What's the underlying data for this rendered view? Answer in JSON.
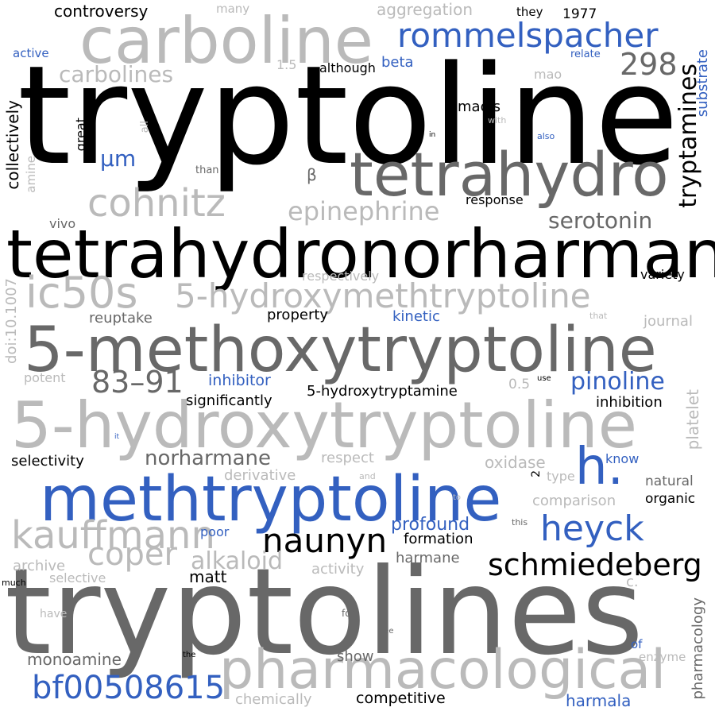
{
  "colors": {
    "background": "#ffffff",
    "black": "#000000",
    "dark_gray": "#686868",
    "light_gray": "#bababa",
    "blue": "#3360c0"
  },
  "words": [
    {
      "text": "tryptoline",
      "color": "black"
    },
    {
      "text": "tryptolines",
      "color": "dark_gray"
    },
    {
      "text": "tetrahydronorharmane",
      "color": "black"
    },
    {
      "text": "5-methoxytryptoline",
      "color": "dark_gray"
    },
    {
      "text": "5-hydroxytryptoline",
      "color": "light_gray"
    },
    {
      "text": "methtryptoline",
      "color": "blue"
    },
    {
      "text": "carboline",
      "color": "light_gray"
    },
    {
      "text": "tetrahydro",
      "color": "dark_gray"
    },
    {
      "text": "pharmacological",
      "color": "light_gray"
    },
    {
      "text": "5-hydroxymethtryptoline",
      "color": "light_gray"
    },
    {
      "text": "ic50s",
      "color": "light_gray"
    },
    {
      "text": "rommelspacher",
      "color": "blue"
    },
    {
      "text": "kauffmann",
      "color": "light_gray"
    },
    {
      "text": "cohnitz",
      "color": "light_gray"
    },
    {
      "text": "heyck",
      "color": "blue"
    },
    {
      "text": "h.",
      "color": "blue"
    },
    {
      "text": "schmiedeberg",
      "color": "black"
    },
    {
      "text": "naunyn",
      "color": "black"
    },
    {
      "text": "bf00508615",
      "color": "blue"
    },
    {
      "text": "coper",
      "color": "light_gray"
    },
    {
      "text": "83–91",
      "color": "dark_gray"
    },
    {
      "text": "298",
      "color": "dark_gray"
    },
    {
      "text": "epinephrine",
      "color": "light_gray"
    },
    {
      "text": "carbolines",
      "color": "light_gray"
    },
    {
      "text": "pinoline",
      "color": "blue"
    },
    {
      "text": "tryptamines",
      "color": "black"
    },
    {
      "text": "serotonin",
      "color": "dark_gray"
    },
    {
      "text": "norharmane",
      "color": "dark_gray"
    },
    {
      "text": "alkaloid",
      "color": "light_gray"
    },
    {
      "text": "μm",
      "color": "blue"
    },
    {
      "text": "profound",
      "color": "blue"
    },
    {
      "text": "controversy",
      "color": "black"
    },
    {
      "text": "aggregation",
      "color": "light_gray"
    },
    {
      "text": "collectively",
      "color": "black"
    },
    {
      "text": "5-hydroxytryptamine",
      "color": "black"
    },
    {
      "text": "monoamine",
      "color": "dark_gray"
    },
    {
      "text": "harmala",
      "color": "blue"
    },
    {
      "text": "competitive",
      "color": "black"
    },
    {
      "text": "inhibitor",
      "color": "blue"
    },
    {
      "text": "inhibition",
      "color": "black"
    },
    {
      "text": "significantly",
      "color": "black"
    },
    {
      "text": "selectivity",
      "color": "black"
    },
    {
      "text": "reuptake",
      "color": "dark_gray"
    },
    {
      "text": "property",
      "color": "black"
    },
    {
      "text": "kinetic",
      "color": "blue"
    },
    {
      "text": "respectively",
      "color": "light_gray"
    },
    {
      "text": "variety",
      "color": "black"
    },
    {
      "text": "journal",
      "color": "light_gray"
    },
    {
      "text": "formation",
      "color": "black"
    },
    {
      "text": "harmane",
      "color": "dark_gray"
    },
    {
      "text": "matt",
      "color": "black"
    },
    {
      "text": "archive",
      "color": "light_gray"
    },
    {
      "text": "selective",
      "color": "light_gray"
    },
    {
      "text": "activity",
      "color": "light_gray"
    },
    {
      "text": "show",
      "color": "dark_gray"
    },
    {
      "text": "chemically",
      "color": "light_gray"
    },
    {
      "text": "respect",
      "color": "light_gray"
    },
    {
      "text": "derivative",
      "color": "light_gray"
    },
    {
      "text": "oxidase",
      "color": "light_gray"
    },
    {
      "text": "comparison",
      "color": "light_gray"
    },
    {
      "text": "natural",
      "color": "dark_gray"
    },
    {
      "text": "organic",
      "color": "black"
    },
    {
      "text": "poor",
      "color": "blue"
    },
    {
      "text": "know",
      "color": "blue"
    },
    {
      "text": "type",
      "color": "light_gray"
    },
    {
      "text": "maois",
      "color": "black"
    },
    {
      "text": "beta",
      "color": "blue"
    },
    {
      "text": "although",
      "color": "black"
    },
    {
      "text": "mao",
      "color": "light_gray"
    },
    {
      "text": "response",
      "color": "black"
    },
    {
      "text": "vivo",
      "color": "dark_gray"
    },
    {
      "text": "potent",
      "color": "light_gray"
    },
    {
      "text": "great",
      "color": "black"
    },
    {
      "text": "active",
      "color": "blue"
    },
    {
      "text": "many",
      "color": "light_gray"
    },
    {
      "text": "they",
      "color": "black"
    },
    {
      "text": "1977",
      "color": "black"
    },
    {
      "text": "relate",
      "color": "blue"
    },
    {
      "text": "1.5",
      "color": "light_gray"
    },
    {
      "text": "than",
      "color": "dark_gray"
    },
    {
      "text": "β",
      "color": "dark_gray"
    },
    {
      "text": "0.5",
      "color": "light_gray"
    },
    {
      "text": "use",
      "color": "black"
    },
    {
      "text": "c.",
      "color": "light_gray"
    },
    {
      "text": "enzyme",
      "color": "light_gray"
    },
    {
      "text": "of",
      "color": "blue"
    },
    {
      "text": "have",
      "color": "light_gray"
    },
    {
      "text": "for",
      "color": "dark_gray"
    },
    {
      "text": "see",
      "color": "dark_gray"
    },
    {
      "text": "the",
      "color": "black"
    },
    {
      "text": "much",
      "color": "black"
    },
    {
      "text": "and",
      "color": "light_gray"
    },
    {
      "text": "to",
      "color": "light_gray"
    },
    {
      "text": "this",
      "color": "dark_gray"
    },
    {
      "text": "2",
      "color": "black"
    },
    {
      "text": "it",
      "color": "blue"
    },
    {
      "text": "that",
      "color": "light_gray"
    },
    {
      "text": "in",
      "color": "black"
    },
    {
      "text": "also",
      "color": "blue"
    },
    {
      "text": "with",
      "color": "light_gray"
    },
    {
      "text": "substrate",
      "color": "blue"
    },
    {
      "text": "platelet",
      "color": "light_gray"
    },
    {
      "text": "pharmacology",
      "color": "dark_gray"
    },
    {
      "text": "doi:10.1007",
      "color": "light_gray"
    },
    {
      "text": "amine",
      "color": "light_gray"
    },
    {
      "text": "all",
      "color": "light_gray"
    }
  ]
}
